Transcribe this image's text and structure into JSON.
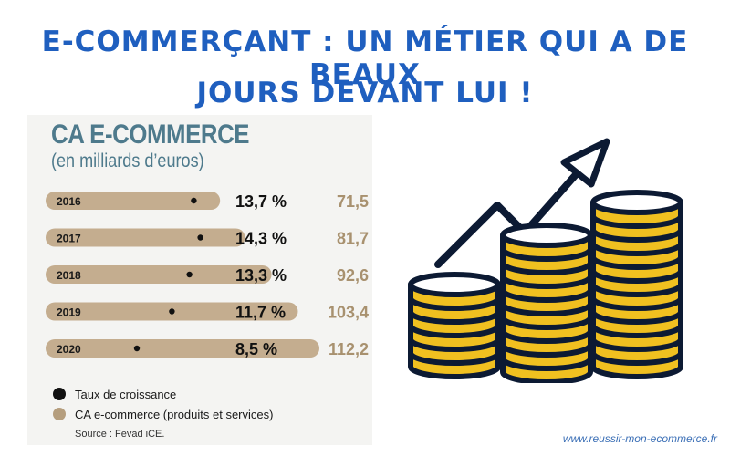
{
  "header": {
    "line1": "E-COMMERÇANT : UN MÉTIER QUI A DE BEAUX",
    "line2": "JOURS DEVANT LUI !"
  },
  "chart_data": {
    "type": "bar",
    "title": "CA E-COMMERCE",
    "subtitle": "(en milliards d’euros)",
    "categories": [
      "2016",
      "2017",
      "2018",
      "2019",
      "2020"
    ],
    "series": [
      {
        "name": "CA e-commerce (produits et services)",
        "values": [
          71.5,
          81.7,
          92.6,
          103.4,
          112.2
        ],
        "labels": [
          "71,5",
          "81,7",
          "92,6",
          "103,4",
          "112,2"
        ],
        "color": "#c4ad8f"
      },
      {
        "name": "Taux de croissance",
        "values": [
          13.7,
          14.3,
          13.3,
          11.7,
          8.5
        ],
        "labels": [
          "13,7 %",
          "14,3 %",
          "13,3 %",
          "11,7 %",
          "8,5 %"
        ],
        "color": "#111111"
      }
    ],
    "legend": [
      {
        "label": "Taux de croissance",
        "color": "#111111"
      },
      {
        "label": "CA e-commerce (produits et services)",
        "color": "#b59e7e"
      }
    ],
    "source": "Source : Fevad iCE."
  },
  "footer": {
    "url": "www.reussir-mon-ecommerce.fr"
  },
  "illustration": {
    "icon": "coins-growth-arrow-icon",
    "accent": "#f0c020",
    "stroke": "#0c1a33"
  }
}
